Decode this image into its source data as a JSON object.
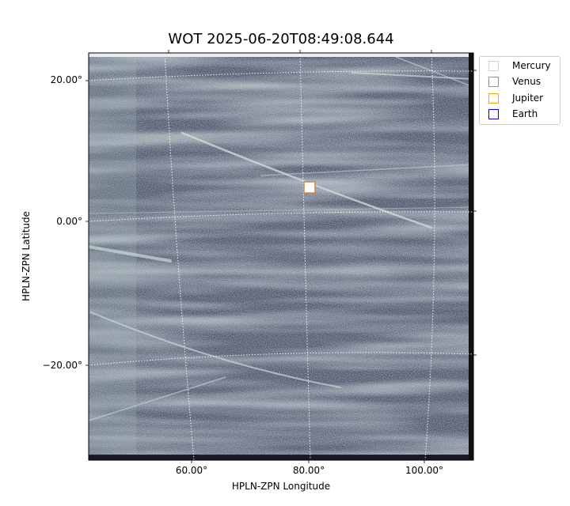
{
  "chart_data": {
    "type": "image",
    "title": "WOT 2025-06-20T08:49:08.644",
    "xlabel": "HPLN-ZPN Longitude",
    "ylabel": "HPLN-ZPN Latitude",
    "xticks": [
      "60.00°",
      "80.00°",
      "100.00°"
    ],
    "yticks": [
      "20.00°",
      "0.00°",
      "−20.00°"
    ],
    "colormap": "gray-blue",
    "grid": true,
    "legend_placement": "outside-top-right",
    "legend": [
      {
        "name": "Mercury",
        "color": "#d3d3d3"
      },
      {
        "name": "Venus",
        "color": "#cd853f"
      },
      {
        "name": "Jupiter",
        "color": "#ffa500"
      },
      {
        "name": "Earth",
        "color": "#0000ff"
      }
    ],
    "markers": [
      {
        "name": "Venus",
        "lon": 80.0,
        "lat": 4.7,
        "color": "#cd853f"
      }
    ]
  }
}
